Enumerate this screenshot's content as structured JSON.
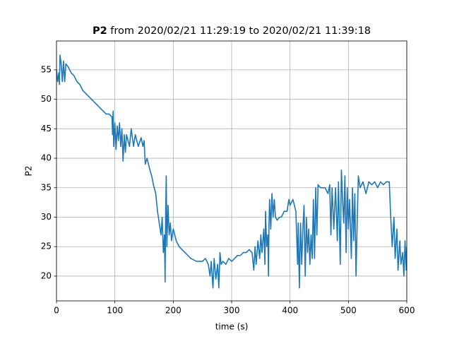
{
  "chart_data": {
    "type": "line",
    "title": {
      "name": "P2",
      "text": "from 2020/02/21 11:29:19 to 2020/02/21 11:39:18"
    },
    "x_label": "time (s)",
    "y_label": "P2",
    "xlim": [
      0,
      600
    ],
    "xticks": [
      0,
      100,
      200,
      300,
      400,
      500,
      600
    ],
    "ylim": [
      15.8,
      59.9
    ],
    "yticks": [
      20,
      25,
      30,
      35,
      40,
      45,
      50,
      55
    ],
    "grid": true,
    "series": [
      {
        "color": "#1f77b4",
        "x": [
          0,
          2,
          4,
          5,
          6,
          8,
          10,
          12,
          14,
          16,
          20,
          25,
          30,
          35,
          40,
          45,
          50,
          55,
          60,
          65,
          70,
          75,
          80,
          85,
          90,
          95,
          96,
          97,
          98,
          100,
          102,
          104,
          106,
          108,
          110,
          112,
          114,
          116,
          118,
          120,
          125,
          128,
          132,
          135,
          140,
          145,
          148,
          150,
          152,
          155,
          160,
          163,
          166,
          170,
          173,
          176,
          179,
          181,
          183,
          185,
          186,
          187,
          188,
          189,
          191,
          193,
          195,
          197,
          200,
          205,
          210,
          215,
          220,
          225,
          230,
          240,
          250,
          255,
          260,
          263,
          265,
          268,
          270,
          273,
          276,
          278,
          280,
          282,
          285,
          290,
          295,
          300,
          305,
          310,
          315,
          320,
          325,
          330,
          335,
          338,
          340,
          342,
          345,
          348,
          350,
          352,
          355,
          357,
          358,
          360,
          362,
          363,
          364,
          365,
          367,
          369,
          371,
          373,
          375,
          378,
          382,
          385,
          390,
          395,
          398,
          400,
          405,
          410,
          413,
          414,
          416,
          418,
          420,
          422,
          424,
          426,
          428,
          430,
          432,
          434,
          436,
          438,
          440,
          442,
          444,
          446,
          448,
          452,
          456,
          460,
          465,
          468,
          470,
          472,
          475,
          478,
          481,
          483,
          486,
          488,
          490,
          492,
          494,
          496,
          498,
          500,
          502,
          505,
          507,
          509,
          511,
          513,
          515,
          517,
          520,
          525,
          530,
          535,
          540,
          545,
          550,
          555,
          560,
          565,
          570,
          572,
          575,
          578,
          580,
          583,
          585,
          588,
          590,
          593,
          595,
          597,
          599,
          600
        ],
        "values": [
          55,
          53,
          54.5,
          52.5,
          57.5,
          56,
          53,
          56.5,
          53,
          56,
          55.5,
          54.5,
          54,
          53,
          52.5,
          51.5,
          51,
          50.5,
          50,
          49.5,
          49,
          48.5,
          48,
          47.5,
          47.5,
          47,
          44,
          48,
          42,
          46,
          41.5,
          45.5,
          43,
          46,
          42,
          45,
          39.5,
          44,
          41,
          44,
          42,
          45,
          42,
          44,
          42,
          43.5,
          42,
          43,
          39,
          40,
          38,
          37,
          35.5,
          34,
          31,
          29,
          27,
          30,
          24,
          27,
          19,
          31,
          37,
          25,
          32,
          27,
          29,
          26,
          28,
          26,
          25,
          24.5,
          24,
          23.5,
          23,
          22.5,
          22.5,
          23,
          22,
          20,
          22.5,
          18,
          23,
          19.5,
          22,
          18,
          24,
          22,
          22.5,
          22,
          23,
          22.5,
          23,
          23.5,
          23.5,
          24,
          24,
          24.5,
          24,
          21,
          25,
          22,
          26,
          23,
          27,
          24,
          28,
          22,
          31,
          25,
          27,
          20,
          29,
          33,
          28,
          34,
          30,
          33,
          30,
          29.5,
          30,
          30,
          31,
          31,
          33,
          32,
          33,
          31,
          22,
          29,
          18,
          29,
          22,
          28,
          32,
          20,
          30,
          24,
          28,
          22,
          27,
          23,
          33,
          23,
          35,
          27,
          35.5,
          35,
          35,
          35,
          34,
          35.5,
          27,
          35,
          28,
          35,
          26,
          36,
          22,
          38,
          33,
          29,
          37,
          24,
          35,
          28,
          33,
          23,
          35,
          26,
          34,
          20,
          29,
          37,
          35,
          36,
          34,
          36,
          35.5,
          36,
          35,
          36,
          35.5,
          36,
          36,
          31,
          25,
          30,
          23,
          28,
          21,
          26,
          22,
          24,
          20,
          26,
          21,
          25
        ]
      }
    ]
  }
}
